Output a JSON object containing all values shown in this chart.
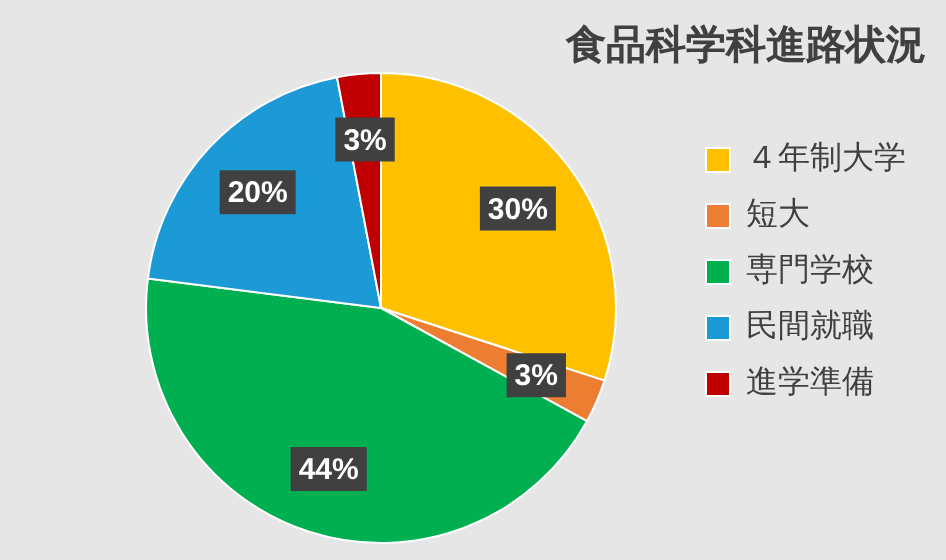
{
  "chart_data": {
    "type": "pie",
    "title": "食品科学科進路状況",
    "categories": [
      "４年制大学",
      "短大",
      "専門学校",
      "民間就職",
      "進学準備"
    ],
    "values": [
      30,
      3,
      44,
      20,
      3
    ],
    "colors": [
      "#ffc000",
      "#ed7d31",
      "#00b050",
      "#1b9ad6",
      "#c00000"
    ],
    "value_labels": [
      "30%",
      "3%",
      "44%",
      "20%",
      "3%"
    ],
    "legend": "right"
  }
}
